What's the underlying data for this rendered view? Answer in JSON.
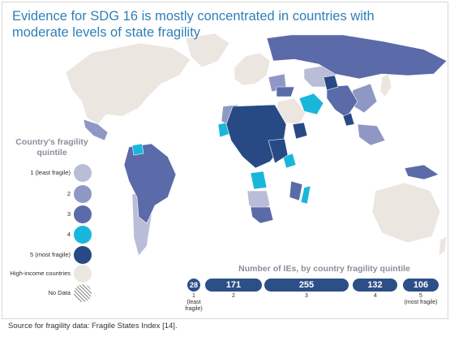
{
  "title": "Evidence for SDG 16 is mostly concentrated in countries with moderate levels of state fragility",
  "legend": {
    "title": "Country's fragility quintile",
    "items": [
      {
        "label": "1 (least fragile)",
        "color": "#b9bdd8"
      },
      {
        "label": "2",
        "color": "#8f97c4"
      },
      {
        "label": "3",
        "color": "#5b6aa8"
      },
      {
        "label": "4",
        "color": "#19b6dc"
      },
      {
        "label": "5 (most fragile)",
        "color": "#274a85"
      },
      {
        "label": "High-income countries",
        "color": "#ece6e0"
      },
      {
        "label": "No Data",
        "color": "hatch"
      }
    ]
  },
  "bar_chart": {
    "title": "Number of IEs, by country fragility quintile",
    "bars": [
      {
        "value": "28",
        "tick": "1",
        "tick_note": "(least fragile)"
      },
      {
        "value": "171",
        "tick": "2",
        "tick_note": ""
      },
      {
        "value": "255",
        "tick": "3",
        "tick_note": ""
      },
      {
        "value": "132",
        "tick": "4",
        "tick_note": ""
      },
      {
        "value": "106",
        "tick": "5",
        "tick_note": "(most fragile)"
      }
    ],
    "bar_color": "#2d4f87"
  },
  "source": "Source for fragility data: Fragile States Index [14]."
}
